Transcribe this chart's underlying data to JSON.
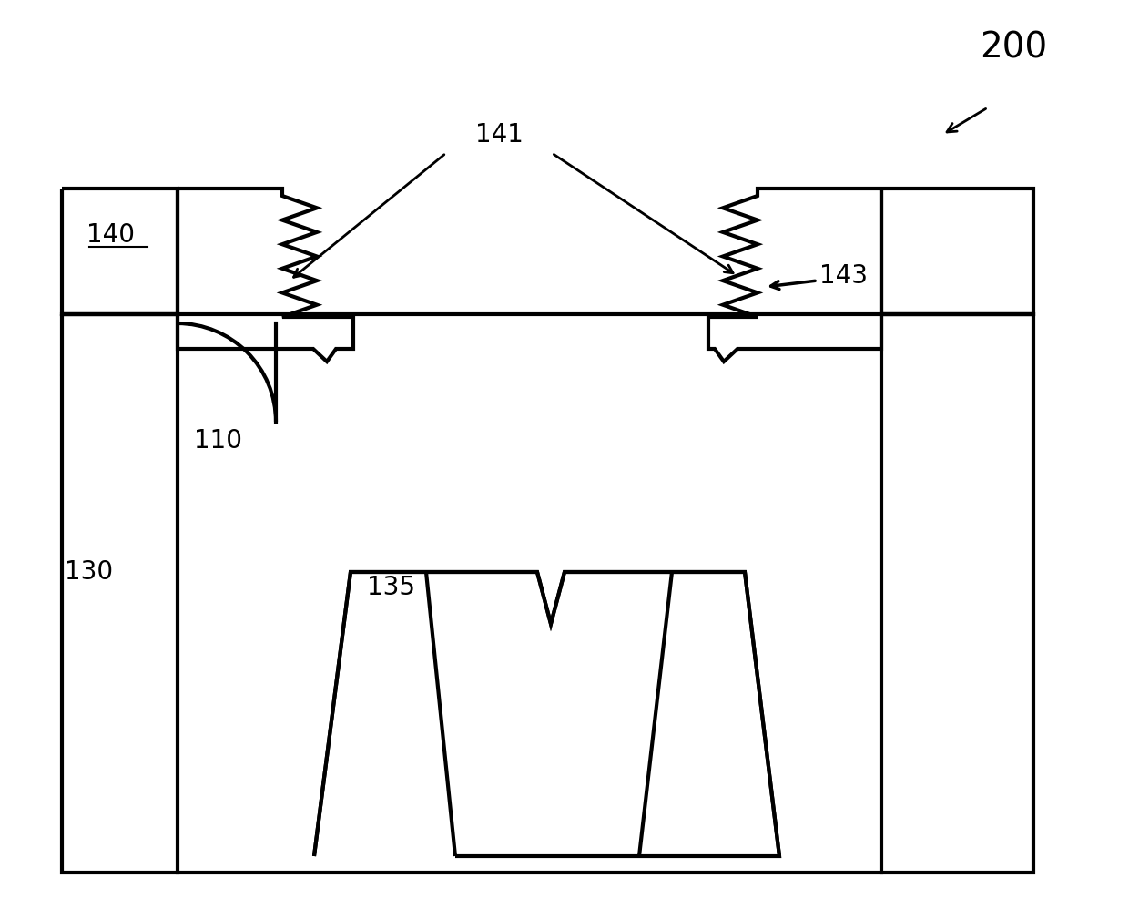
{
  "fig_width": 12.4,
  "fig_height": 10.09,
  "bg_color": "#ffffff",
  "line_color": "#000000",
  "lw": 3.0,
  "label_200": "200",
  "label_141": "141",
  "label_140": "140",
  "label_143": "143",
  "label_110": "110",
  "label_130": "130",
  "label_135": "135",
  "fs_large": 28,
  "fs_med": 20
}
